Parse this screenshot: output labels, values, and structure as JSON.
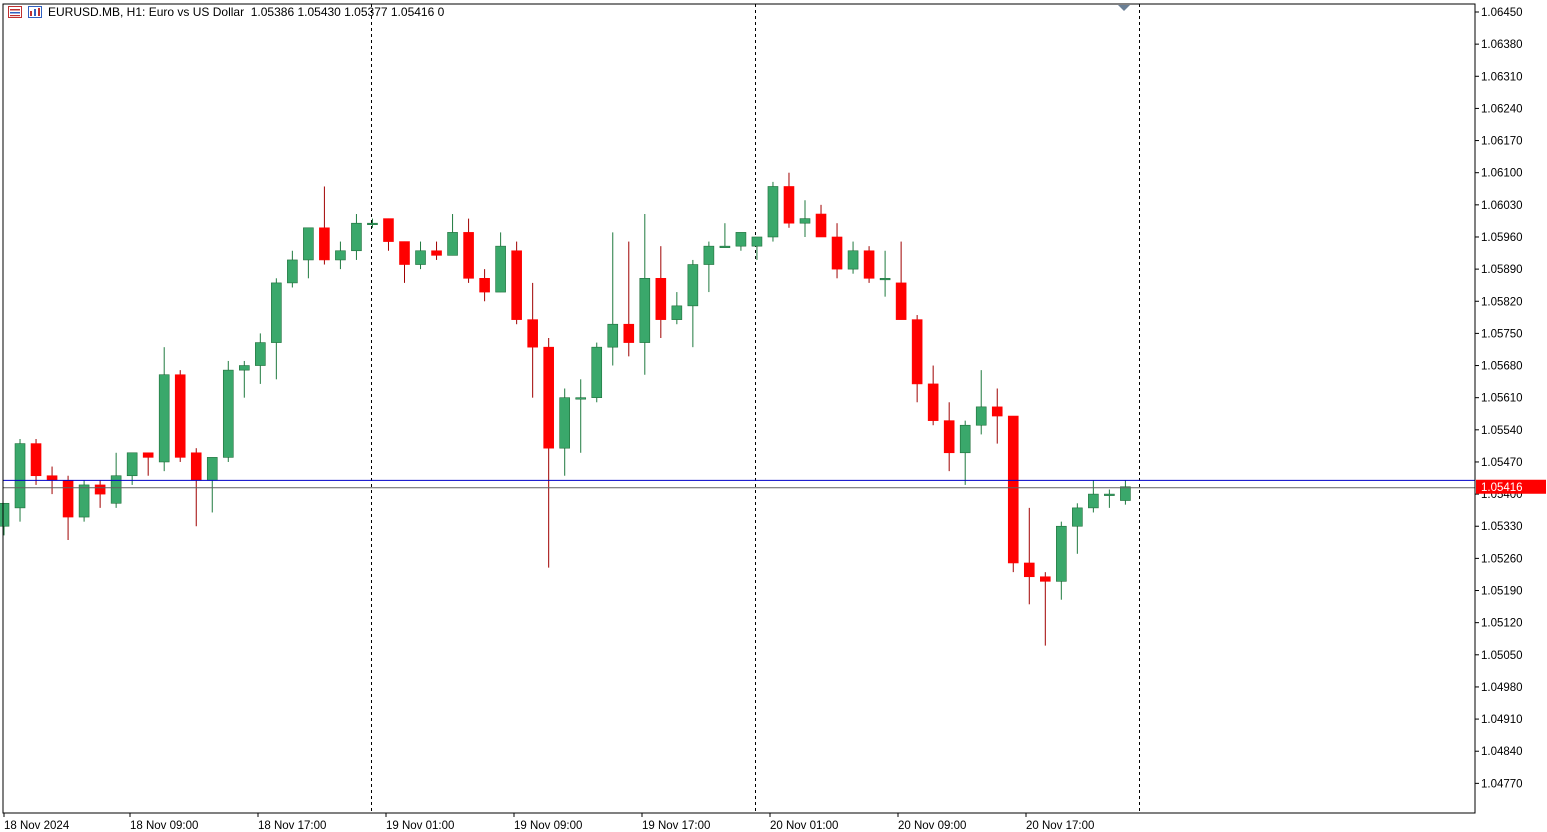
{
  "header": {
    "symbol": "EURUSD.MB, H1:",
    "description": "Euro vs US Dollar",
    "ohlc": "1.05386 1.05430 1.05377 1.05416",
    "volume": "0",
    "icons": [
      "chart-list-icon",
      "chart-window-icon"
    ]
  },
  "colors": {
    "bull": "#3aa86b",
    "bear": "#ff0000",
    "wick_bull": "#1f7a3f",
    "wick_bear": "#a00000",
    "bid_line": "#0000c8",
    "price_label_bg": "#ff0000"
  },
  "chart_data": {
    "type": "candlestick",
    "timeframe": "H1",
    "ylim": [
      1.0471,
      1.0648
    ],
    "y_ticks": [
      "1.06450",
      "1.06380",
      "1.06310",
      "1.06240",
      "1.06170",
      "1.06100",
      "1.06030",
      "1.05960",
      "1.05890",
      "1.05820",
      "1.05750",
      "1.05680",
      "1.05610",
      "1.05540",
      "1.05470",
      "1.05400",
      "1.05330",
      "1.05260",
      "1.05190",
      "1.05120",
      "1.05050",
      "1.04980",
      "1.04910",
      "1.04840",
      "1.04770"
    ],
    "x_labels": [
      "18 Nov 2024",
      "18 Nov 09:00",
      "18 Nov 17:00",
      "19 Nov 01:00",
      "19 Nov 09:00",
      "19 Nov 17:00",
      "20 Nov 01:00",
      "20 Nov 09:00",
      "20 Nov 17:00"
    ],
    "current_price": "1.05416",
    "bid_price": 1.05416,
    "ask_price": 1.0543,
    "candles": [
      [
        1.0533,
        1.0538,
        1.0531,
        1.0538
      ],
      [
        1.0537,
        1.0552,
        1.0534,
        1.0551
      ],
      [
        1.0551,
        1.0552,
        1.0542,
        1.0544
      ],
      [
        1.0544,
        1.0546,
        1.054,
        1.0543
      ],
      [
        1.0543,
        1.0544,
        1.053,
        1.0535
      ],
      [
        1.0535,
        1.0543,
        1.0534,
        1.0542
      ],
      [
        1.0542,
        1.0543,
        1.0537,
        1.054
      ],
      [
        1.0538,
        1.0549,
        1.0537,
        1.0544
      ],
      [
        1.0544,
        1.0549,
        1.0542,
        1.0549
      ],
      [
        1.0549,
        1.0549,
        1.0544,
        1.0548
      ],
      [
        1.0547,
        1.0572,
        1.0545,
        1.0566
      ],
      [
        1.0566,
        1.0567,
        1.0547,
        1.0548
      ],
      [
        1.0549,
        1.055,
        1.0533,
        1.0543
      ],
      [
        1.0543,
        1.0548,
        1.0536,
        1.0548
      ],
      [
        1.0548,
        1.0569,
        1.0547,
        1.0567
      ],
      [
        1.0567,
        1.0569,
        1.0561,
        1.0568
      ],
      [
        1.0568,
        1.0575,
        1.0564,
        1.0573
      ],
      [
        1.0573,
        1.0587,
        1.0565,
        1.0586
      ],
      [
        1.0586,
        1.0593,
        1.0585,
        1.0591
      ],
      [
        1.0591,
        1.0598,
        1.0587,
        1.0598
      ],
      [
        1.0598,
        1.0607,
        1.059,
        1.0591
      ],
      [
        1.0591,
        1.0595,
        1.0589,
        1.0593
      ],
      [
        1.0593,
        1.0601,
        1.0591,
        1.0599
      ],
      [
        1.0599,
        1.06,
        1.0598,
        1.0599
      ],
      [
        1.06,
        1.06,
        1.0593,
        1.0595
      ],
      [
        1.0595,
        1.0595,
        1.0586,
        1.059
      ],
      [
        1.059,
        1.0595,
        1.0589,
        1.0593
      ],
      [
        1.0593,
        1.0595,
        1.0591,
        1.0592
      ],
      [
        1.0592,
        1.0601,
        1.0592,
        1.0597
      ],
      [
        1.0597,
        1.06,
        1.0586,
        1.0587
      ],
      [
        1.0587,
        1.0589,
        1.0582,
        1.0584
      ],
      [
        1.0584,
        1.0597,
        1.0584,
        1.0594
      ],
      [
        1.0593,
        1.0595,
        1.0577,
        1.0578
      ],
      [
        1.0578,
        1.0586,
        1.0561,
        1.0572
      ],
      [
        1.0572,
        1.0574,
        1.0524,
        1.055
      ],
      [
        1.055,
        1.0563,
        1.0544,
        1.0561
      ],
      [
        1.0561,
        1.0565,
        1.0549,
        1.0561
      ],
      [
        1.0561,
        1.0573,
        1.056,
        1.0572
      ],
      [
        1.0572,
        1.0597,
        1.0568,
        1.0577
      ],
      [
        1.0577,
        1.0595,
        1.057,
        1.0573
      ],
      [
        1.0573,
        1.0601,
        1.0566,
        1.0587
      ],
      [
        1.0587,
        1.0594,
        1.0574,
        1.0578
      ],
      [
        1.0578,
        1.0584,
        1.0577,
        1.0581
      ],
      [
        1.0581,
        1.0591,
        1.0572,
        1.059
      ],
      [
        1.059,
        1.0595,
        1.0584,
        1.0594
      ],
      [
        1.0594,
        1.0599,
        1.0594,
        1.0594
      ],
      [
        1.0594,
        1.0597,
        1.0593,
        1.0597
      ],
      [
        1.0594,
        1.0596,
        1.0591,
        1.0596
      ],
      [
        1.0596,
        1.0608,
        1.0595,
        1.0607
      ],
      [
        1.0607,
        1.061,
        1.0598,
        1.0599
      ],
      [
        1.0599,
        1.0604,
        1.0596,
        1.06
      ],
      [
        1.0601,
        1.0603,
        1.0596,
        1.0596
      ],
      [
        1.0596,
        1.0599,
        1.0587,
        1.0589
      ],
      [
        1.0589,
        1.0595,
        1.0588,
        1.0593
      ],
      [
        1.0593,
        1.0594,
        1.0586,
        1.0587
      ],
      [
        1.0587,
        1.0593,
        1.0583,
        1.0587
      ],
      [
        1.0586,
        1.0595,
        1.0578,
        1.0578
      ],
      [
        1.0578,
        1.0579,
        1.056,
        1.0564
      ],
      [
        1.0564,
        1.0568,
        1.0555,
        1.0556
      ],
      [
        1.0556,
        1.056,
        1.0545,
        1.0549
      ],
      [
        1.0549,
        1.0556,
        1.0542,
        1.0555
      ],
      [
        1.0555,
        1.0567,
        1.0553,
        1.0559
      ],
      [
        1.0559,
        1.0563,
        1.0551,
        1.0557
      ],
      [
        1.0557,
        1.0557,
        1.0523,
        1.0525
      ],
      [
        1.0525,
        1.0537,
        1.0516,
        1.0522
      ],
      [
        1.0522,
        1.0523,
        1.0507,
        1.0521
      ],
      [
        1.0521,
        1.0534,
        1.0517,
        1.0533
      ],
      [
        1.0533,
        1.0538,
        1.0527,
        1.0537
      ],
      [
        1.0537,
        1.0543,
        1.0536,
        1.054
      ],
      [
        1.054,
        1.0541,
        1.0537,
        1.054
      ],
      [
        1.05386,
        1.0543,
        1.05377,
        1.05416
      ]
    ]
  }
}
